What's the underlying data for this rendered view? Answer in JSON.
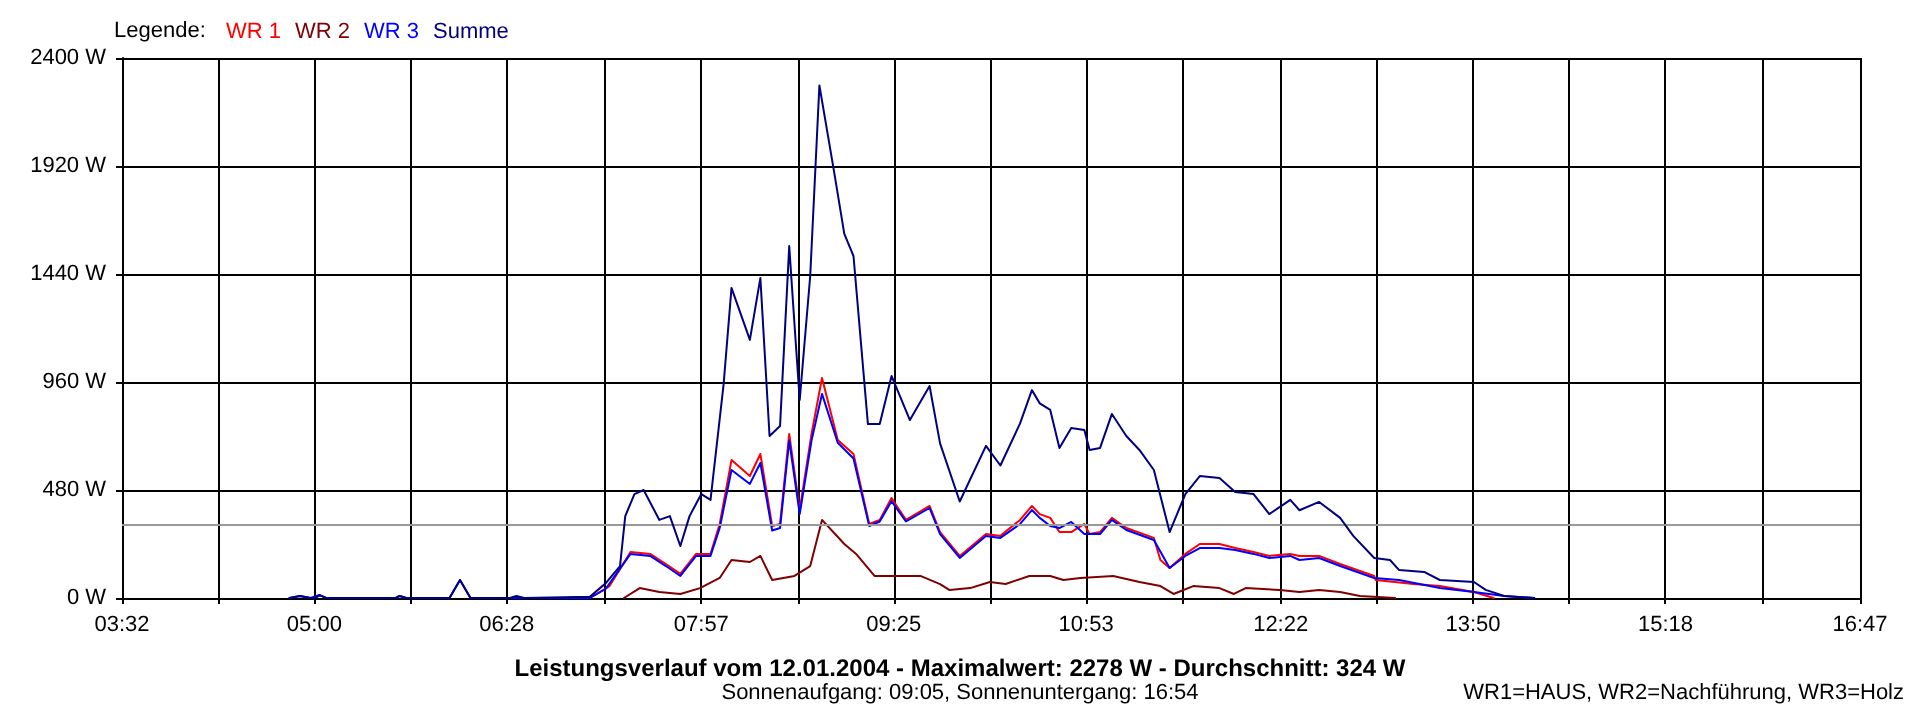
{
  "chart_data": {
    "type": "line",
    "title": "Leistungsverlauf vom 12.01.2004 - Maximalwert: 2278 W - Durchschnitt: 324 W",
    "subtitle": "Sonnenaufgang: 09:05, Sonnenuntergang: 16:54",
    "legend_title": "Legende:",
    "annotations": [
      "WR1=HAUS, WR2=Nachführung, WR3=Holz"
    ],
    "series": [
      {
        "name": "WR 1",
        "color": "#ff0000",
        "x": [
          7.1,
          7.25,
          7.41,
          7.56,
          7.68,
          7.79,
          7.91,
          8.02,
          8.09,
          8.18,
          8.32,
          8.4,
          8.49,
          8.55,
          8.62,
          8.7,
          8.79,
          8.87,
          8.99,
          9.11,
          9.23,
          9.31,
          9.4,
          9.51,
          9.69,
          9.77,
          9.92,
          10.12,
          10.23,
          10.38,
          10.47,
          10.53,
          10.61,
          10.68,
          10.77,
          10.87,
          10.91,
          10.99,
          11.08,
          11.19,
          11.4,
          11.45,
          11.52,
          11.64,
          11.75,
          11.9,
          12.02,
          12.16,
          12.28,
          12.44,
          12.51,
          12.66,
          12.82,
          13.08,
          13.09,
          13.38,
          13.58,
          13.84,
          13.99
        ],
        "values": [
          0,
          53,
          204,
          196,
          151,
          107,
          196,
          196,
          329,
          613,
          542,
          640,
          320,
          329,
          729,
          391,
          729,
          978,
          702,
          640,
          329,
          347,
          444,
          347,
          409,
          293,
          187,
          284,
          276,
          347,
          409,
          373,
          356,
          293,
          293,
          329,
          284,
          293,
          356,
          311,
          267,
          169,
          133,
          196,
          240,
          240,
          222,
          204,
          187,
          196,
          187,
          187,
          151,
          98,
          80,
          62,
          53,
          27,
          0
        ]
      },
      {
        "name": "WR 2",
        "color": "#800000",
        "x": [
          7.36,
          7.48,
          7.63,
          7.79,
          7.94,
          8.09,
          8.18,
          8.32,
          8.4,
          8.49,
          8.66,
          8.78,
          8.87,
          9.04,
          9.13,
          9.27,
          9.42,
          9.62,
          9.77,
          9.84,
          10.0,
          10.15,
          10.27,
          10.45,
          10.61,
          10.71,
          10.84,
          11.09,
          11.29,
          11.45,
          11.55,
          11.7,
          11.9,
          12.01,
          12.1,
          12.36,
          12.51,
          12.66,
          12.82,
          12.97,
          13.24
        ],
        "values": [
          0,
          44,
          27,
          18,
          44,
          89,
          169,
          160,
          187,
          80,
          98,
          142,
          347,
          240,
          196,
          98,
          98,
          98,
          62,
          36,
          44,
          71,
          62,
          98,
          98,
          80,
          89,
          98,
          71,
          53,
          18,
          53,
          44,
          18,
          44,
          36,
          27,
          36,
          27,
          9,
          0
        ]
      },
      {
        "name": "WR 3",
        "color": "#0000ff",
        "x": [
          4.81,
          4.89,
          4.97,
          5.04,
          5.09,
          5.62,
          5.65,
          5.7,
          6.03,
          6.11,
          6.19,
          7.1,
          7.22,
          7.41,
          7.56,
          7.68,
          7.79,
          7.91,
          8.02,
          8.09,
          8.18,
          8.32,
          8.4,
          8.49,
          8.55,
          8.62,
          8.7,
          8.79,
          8.87,
          8.99,
          9.11,
          9.23,
          9.31,
          9.4,
          9.51,
          9.69,
          9.77,
          9.92,
          10.12,
          10.23,
          10.38,
          10.47,
          10.53,
          10.61,
          10.68,
          10.77,
          10.87,
          10.99,
          11.08,
          11.19,
          11.4,
          11.52,
          11.64,
          11.75,
          11.9,
          12.02,
          12.16,
          12.28,
          12.44,
          12.51,
          12.66,
          12.82,
          13.08,
          13.27,
          13.58,
          13.84,
          14.07,
          14.3
        ],
        "values": [
          0,
          9,
          0,
          13,
          0,
          0,
          9,
          0,
          0,
          80,
          0,
          0,
          40,
          196,
          187,
          142,
          98,
          187,
          187,
          311,
          569,
          507,
          600,
          300,
          311,
          700,
          373,
          700,
          907,
          690,
          620,
          320,
          340,
          430,
          340,
          400,
          284,
          178,
          276,
          267,
          329,
          391,
          356,
          320,
          311,
          338,
          284,
          284,
          347,
          302,
          258,
          133,
          187,
          222,
          222,
          213,
          196,
          178,
          187,
          169,
          178,
          142,
          89,
          80,
          44,
          27,
          9,
          0
        ]
      },
      {
        "name": "Summe",
        "color": "#000080",
        "x": [
          4.81,
          4.89,
          4.97,
          5.01,
          5.04,
          5.09,
          5.62,
          5.65,
          5.7,
          6.03,
          6.11,
          6.19,
          6.49,
          6.54,
          6.6,
          7.1,
          7.22,
          7.33,
          7.37,
          7.44,
          7.51,
          7.63,
          7.71,
          7.79,
          7.86,
          7.95,
          8.02,
          8.12,
          8.18,
          8.32,
          8.4,
          8.47,
          8.55,
          8.62,
          8.66,
          8.7,
          8.78,
          8.85,
          8.96,
          9.04,
          9.11,
          9.22,
          9.31,
          9.4,
          9.54,
          9.69,
          9.77,
          9.92,
          10.12,
          10.23,
          10.38,
          10.47,
          10.53,
          10.61,
          10.68,
          10.77,
          10.87,
          10.91,
          10.99,
          11.08,
          11.19,
          11.29,
          11.4,
          11.52,
          11.64,
          11.75,
          11.9,
          12.02,
          12.16,
          12.28,
          12.44,
          12.51,
          12.66,
          12.82,
          12.92,
          13.08,
          13.2,
          13.27,
          13.46,
          13.58,
          13.84,
          13.93,
          14.07,
          14.3
        ],
        "values": [
          0,
          9,
          0,
          0,
          13,
          0,
          0,
          9,
          0,
          0,
          80,
          0,
          0,
          9,
          0,
          6,
          65,
          142,
          364,
          462,
          480,
          347,
          364,
          231,
          364,
          462,
          436,
          951,
          1378,
          1147,
          1422,
          720,
          764,
          1564,
          1218,
          880,
          1431,
          2278,
          1902,
          1618,
          1520,
          773,
          773,
          987,
          791,
          942,
          687,
          429,
          676,
          589,
          776,
          924,
          865,
          836,
          667,
          756,
          747,
          658,
          667,
          818,
          720,
          658,
          569,
          293,
          462,
          542,
          533,
          471,
          462,
          373,
          436,
          390,
          427,
          356,
          276,
          178,
          169,
          124,
          116,
          80,
          71,
          36,
          9,
          0
        ]
      }
    ],
    "xlim": [
      3.5333,
      16.7833
    ],
    "xticks": [
      {
        "value": 3.5333,
        "label": "03:32"
      },
      {
        "value": 4.2667,
        "label": null
      },
      {
        "value": 5.0,
        "label": "05:00"
      },
      {
        "value": 5.7333,
        "label": null
      },
      {
        "value": 6.4667,
        "label": "06:28"
      },
      {
        "value": 7.2083,
        "label": null
      },
      {
        "value": 7.95,
        "label": "07:57"
      },
      {
        "value": 8.6833,
        "label": null
      },
      {
        "value": 9.4167,
        "label": "09:25"
      },
      {
        "value": 10.15,
        "label": null
      },
      {
        "value": 10.8833,
        "label": "10:53"
      },
      {
        "value": 11.625,
        "label": null
      },
      {
        "value": 12.3667,
        "label": "12:22"
      },
      {
        "value": 13.1,
        "label": null
      },
      {
        "value": 13.8333,
        "label": "13:50"
      },
      {
        "value": 14.5667,
        "label": null
      },
      {
        "value": 15.3,
        "label": "15:18"
      },
      {
        "value": 16.0417,
        "label": null
      },
      {
        "value": 16.7833,
        "label": "16:47"
      }
    ],
    "ylim": [
      0,
      2400
    ],
    "yticks": [
      {
        "value": 0,
        "label": "0 W"
      },
      {
        "value": 480,
        "label": "480 W"
      },
      {
        "value": 960,
        "label": "960 W"
      },
      {
        "value": 1440,
        "label": "1440 W"
      },
      {
        "value": 1920,
        "label": "1920 W"
      },
      {
        "value": 2400,
        "label": "2400 W"
      }
    ],
    "ref_lines": [
      {
        "axis": "y",
        "value": 324,
        "color": "#999999"
      }
    ],
    "grid": true,
    "legend": "top left",
    "marker": "none"
  }
}
